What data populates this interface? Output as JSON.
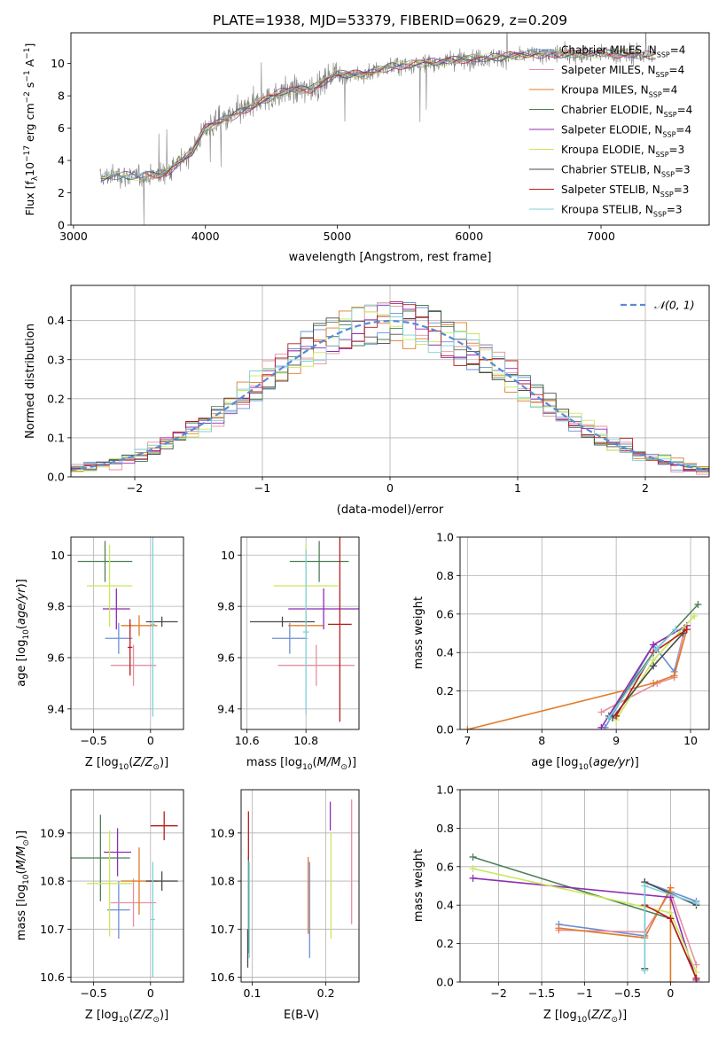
{
  "figure": {
    "title": "PLATE=1938, MJD=53379, FIBERID=0629, z=0.209"
  },
  "models": [
    {
      "name": "Chabrier MILES, N$_{SSP}$=4",
      "label_main": "Chabrier MILES, N",
      "label_sub": "SSP",
      "label_tail": "=4",
      "color": "#6b8fd6"
    },
    {
      "name": "Salpeter MILES, N$_{SSP}$=4",
      "label_main": "Salpeter MILES, N",
      "label_sub": "SSP",
      "label_tail": "=4",
      "color": "#e88f9e"
    },
    {
      "name": "Kroupa MILES, N$_{SSP}$=4",
      "label_main": "Kroupa MILES, N",
      "label_sub": "SSP",
      "label_tail": "=4",
      "color": "#e07b28"
    },
    {
      "name": "Chabrier ELODIE, N$_{SSP}$=4",
      "label_main": "Chabrier ELODIE, N",
      "label_sub": "SSP",
      "label_tail": "=4",
      "color": "#4e7f56"
    },
    {
      "name": "Salpeter ELODIE, N$_{SSP}$=4",
      "label_main": "Salpeter ELODIE, N",
      "label_sub": "SSP",
      "label_tail": "=4",
      "color": "#8e2db0"
    },
    {
      "name": "Kroupa ELODIE, N$_{SSP}$=3",
      "label_main": "Kroupa ELODIE, N",
      "label_sub": "SSP",
      "label_tail": "=3",
      "color": "#c9e85a"
    },
    {
      "name": "Chabrier STELIB, N$_{SSP}$=3",
      "label_main": "Chabrier STELIB, N",
      "label_sub": "SSP",
      "label_tail": "=3",
      "color": "#4a4a4a"
    },
    {
      "name": "Salpeter STELIB, N$_{SSP}$=3",
      "label_main": "Salpeter STELIB, N",
      "label_sub": "SSP",
      "label_tail": "=3",
      "color": "#b81c1c"
    },
    {
      "name": "Kroupa STELIB, N$_{SSP}$=3",
      "label_main": "Kroupa STELIB, N",
      "label_sub": "SSP",
      "label_tail": "=3",
      "color": "#7fd0d8"
    }
  ],
  "chart_data": [
    {
      "id": "spectrum",
      "type": "line",
      "xlabel": "wavelength [Angstrom, rest frame]",
      "ylabel": "Flux [f$_\\lambda$10$^{-17}$ erg cm$^{-2}$ s$^{-1}$ A$^{-1}$]",
      "xlim": [
        2980,
        7820
      ],
      "ylim": [
        0,
        11.9
      ],
      "xticks": [
        3000,
        4000,
        5000,
        6000,
        7000
      ],
      "yticks": [
        0,
        2,
        4,
        6,
        8,
        10
      ],
      "grid": false,
      "legend": "top-right",
      "data_color": "#7f7f7f",
      "continuum_x": [
        3200,
        3300,
        3500,
        3700,
        3900,
        4000,
        4200,
        4400,
        4600,
        4800,
        5000,
        5200,
        5400,
        5600,
        5800,
        6000,
        6200,
        6400,
        6600,
        6800,
        7000,
        7200,
        7400
      ],
      "continuum_y": [
        2.9,
        3.1,
        3.0,
        3.2,
        4.6,
        6.0,
        6.7,
        7.6,
        8.3,
        8.4,
        9.4,
        9.3,
        9.8,
        10.0,
        10.1,
        10.3,
        10.4,
        10.5,
        10.6,
        10.6,
        10.6,
        10.6,
        10.5
      ]
    },
    {
      "id": "residuals",
      "type": "histogram",
      "xlabel": "(data-model)/error",
      "ylabel": "Normed distribution",
      "xlim": [
        -2.5,
        2.5
      ],
      "ylim": [
        0,
        0.49
      ],
      "xticks": [
        -2,
        -1,
        0,
        1,
        2
      ],
      "yticks": [
        0.0,
        0.1,
        0.2,
        0.3,
        0.4
      ],
      "grid": true,
      "legend": "top-right",
      "reference": {
        "label": "$\\mathcal{N}(0,1)$",
        "label_text": "𝒩(0, 1)",
        "color": "#5a8ad6",
        "style": "dashed"
      },
      "bin_width": 0.1
    },
    {
      "id": "age-vs-Z",
      "type": "scatter",
      "xlabel": "Z [log$_{10}$(Z/Z$_\\odot$)]",
      "ylabel": "age  [log$_{10}$(age/yr)]",
      "xlim": [
        -0.7,
        0.29
      ],
      "ylim": [
        9.32,
        10.07
      ],
      "xticks": [
        -0.5,
        0.0
      ],
      "yticks": [
        9.4,
        9.6,
        9.8,
        10.0
      ],
      "grid": true,
      "points": [
        {
          "x": -0.28,
          "y": 9.675,
          "xerr": 0.12,
          "yerr": 0.06
        },
        {
          "x": -0.15,
          "y": 9.57,
          "xerr": 0.2,
          "yerr": 0.08
        },
        {
          "x": -0.1,
          "y": 9.725,
          "xerr": 0.16,
          "yerr": 0.04
        },
        {
          "x": -0.4,
          "y": 9.975,
          "xerr": 0.24,
          "yerr": 0.08
        },
        {
          "x": -0.3,
          "y": 9.79,
          "xerr": 0.12,
          "yerr": 0.08
        },
        {
          "x": -0.36,
          "y": 9.88,
          "xerr": 0.2,
          "yerr": 0.16
        },
        {
          "x": 0.1,
          "y": 9.74,
          "xerr": 0.14,
          "yerr": 0.02
        },
        {
          "x": -0.18,
          "y": 9.64,
          "xerr": 0.02,
          "yerr": 0.11
        },
        {
          "x": 0.02,
          "y": 9.73,
          "xerr": 0.02,
          "yerr": 0.36
        }
      ]
    },
    {
      "id": "age-vs-mass",
      "type": "scatter",
      "xlabel": "mass [log$_{10}$(M/M$_\\odot$)]",
      "ylabel": "",
      "xlim": [
        10.58,
        10.98
      ],
      "ylim": [
        9.32,
        10.07
      ],
      "xticks": [
        10.6,
        10.8
      ],
      "yticks": [
        9.4,
        9.6,
        9.8,
        10.0
      ],
      "grid": true,
      "points": [
        {
          "x": 10.745,
          "y": 9.675,
          "xerr": 0.06,
          "yerr": 0.06
        },
        {
          "x": 10.835,
          "y": 9.57,
          "xerr": 0.13,
          "yerr": 0.08
        },
        {
          "x": 10.8,
          "y": 9.725,
          "xerr": 0.06,
          "yerr": 0.04
        },
        {
          "x": 10.845,
          "y": 9.975,
          "xerr": 0.1,
          "yerr": 0.08
        },
        {
          "x": 10.86,
          "y": 9.79,
          "xerr": 0.12,
          "yerr": 0.08
        },
        {
          "x": 10.8,
          "y": 9.88,
          "xerr": 0.11,
          "yerr": 0.16
        },
        {
          "x": 10.72,
          "y": 9.74,
          "xerr": 0.11,
          "yerr": 0.02
        },
        {
          "x": 10.915,
          "y": 9.73,
          "xerr": 0.04,
          "yerr": 0.38
        },
        {
          "x": 10.8,
          "y": 9.7,
          "xerr": 0.01,
          "yerr": 0.32
        }
      ]
    },
    {
      "id": "mass-weight-vs-age",
      "type": "line",
      "xlabel": "age  [log$_{10}$(age/yr)]",
      "ylabel": "mass weight",
      "xlim": [
        6.9,
        10.25
      ],
      "ylim": [
        0,
        1
      ],
      "xticks": [
        7,
        8,
        9,
        10
      ],
      "yticks": [
        0.0,
        0.2,
        0.4,
        0.6,
        0.8,
        1.0
      ],
      "grid": true,
      "series": [
        {
          "x": [
            8.85,
            9.5,
            9.78,
            9.92
          ],
          "y": [
            0.01,
            0.44,
            0.3,
            0.52
          ]
        },
        {
          "x": [
            8.8,
            9.55,
            9.78,
            9.92
          ],
          "y": [
            0.09,
            0.24,
            0.27,
            0.53
          ]
        },
        {
          "x": [
            7.0,
            9.5,
            9.78,
            9.95
          ],
          "y": [
            0.0,
            0.24,
            0.28,
            0.52
          ]
        },
        {
          "x": [
            8.9,
            9.5,
            10.1
          ],
          "y": [
            0.07,
            0.4,
            0.65
          ]
        },
        {
          "x": [
            8.8,
            9.5,
            9.95
          ],
          "y": [
            0.01,
            0.44,
            0.54
          ]
        },
        {
          "x": [
            9.0,
            9.5,
            10.05
          ],
          "y": [
            0.05,
            0.36,
            0.59
          ]
        },
        {
          "x": [
            8.95,
            9.5,
            9.9
          ],
          "y": [
            0.06,
            0.33,
            0.5
          ]
        },
        {
          "x": [
            9.0,
            9.5,
            9.95
          ],
          "y": [
            0.07,
            0.4,
            0.52
          ]
        },
        {
          "x": [
            8.9,
            9.55,
            9.8
          ],
          "y": [
            0.06,
            0.42,
            0.52
          ]
        }
      ]
    },
    {
      "id": "mass-vs-Z",
      "type": "scatter",
      "xlabel": "Z [log$_{10}$(Z/Z$_\\odot$)]",
      "ylabel": "mass [log$_{10}$(M/M$_\\odot$)]",
      "xlim": [
        -0.7,
        0.29
      ],
      "ylim": [
        10.59,
        10.99
      ],
      "xticks": [
        -0.5,
        0.0
      ],
      "yticks": [
        10.6,
        10.7,
        10.8,
        10.9
      ],
      "grid": true,
      "points": [
        {
          "x": -0.28,
          "y": 10.74,
          "xerr": 0.1,
          "yerr": 0.06
        },
        {
          "x": -0.15,
          "y": 10.755,
          "xerr": 0.2,
          "yerr": 0.05
        },
        {
          "x": -0.1,
          "y": 10.8,
          "xerr": 0.16,
          "yerr": 0.07
        },
        {
          "x": -0.44,
          "y": 10.848,
          "xerr": 0.26,
          "yerr": 0.09
        },
        {
          "x": -0.29,
          "y": 10.86,
          "xerr": 0.12,
          "yerr": 0.05
        },
        {
          "x": -0.36,
          "y": 10.795,
          "xerr": 0.2,
          "yerr": 0.11
        },
        {
          "x": 0.1,
          "y": 10.8,
          "xerr": 0.14,
          "yerr": 0.02
        },
        {
          "x": 0.12,
          "y": 10.915,
          "xerr": 0.12,
          "yerr": 0.03
        },
        {
          "x": 0.02,
          "y": 10.72,
          "xerr": 0.02,
          "yerr": 0.12
        }
      ]
    },
    {
      "id": "mass-vs-EBV",
      "type": "scatter",
      "xlabel": "E(B-V)",
      "ylabel": "",
      "xlim": [
        0.085,
        0.245
      ],
      "ylim": [
        10.59,
        10.99
      ],
      "xticks": [
        0.1,
        0.2
      ],
      "yticks": [
        10.6,
        10.7,
        10.8,
        10.9
      ],
      "grid": true,
      "points": [
        {
          "x": 0.178,
          "y": 10.74,
          "xerr": 0,
          "yerr": 0.1
        },
        {
          "x": 0.235,
          "y": 10.84,
          "xerr": 0,
          "yerr": 0.13
        },
        {
          "x": 0.176,
          "y": 10.77,
          "xerr": 0,
          "yerr": 0.08
        },
        {
          "x": 0.095,
          "y": 10.75,
          "xerr": 0,
          "yerr": 0.1
        },
        {
          "x": 0.206,
          "y": 10.935,
          "xerr": 0,
          "yerr": 0.03
        },
        {
          "x": 0.207,
          "y": 10.79,
          "xerr": 0,
          "yerr": 0.11
        },
        {
          "x": 0.094,
          "y": 10.66,
          "xerr": 0,
          "yerr": 0.04
        },
        {
          "x": 0.095,
          "y": 10.895,
          "xerr": 0,
          "yerr": 0.05
        },
        {
          "x": 0.096,
          "y": 10.74,
          "xerr": 0,
          "yerr": 0.1
        }
      ]
    },
    {
      "id": "mass-weight-vs-Z",
      "type": "line",
      "xlabel": "Z [log$_{10}$(Z/Z$_\\odot$)]",
      "ylabel": "mass weight",
      "xlim": [
        -2.45,
        0.45
      ],
      "ylim": [
        0,
        1
      ],
      "xticks": [
        -2.0,
        -1.5,
        -1.0,
        -0.5,
        0.0
      ],
      "yticks": [
        0.0,
        0.2,
        0.4,
        0.6,
        0.8,
        1.0
      ],
      "grid": true,
      "series": [
        {
          "x": [
            -1.3,
            -0.3,
            -0.3,
            0.3
          ],
          "y": [
            0.3,
            0.24,
            0.52,
            0.42
          ]
        },
        {
          "x": [
            -1.3,
            -0.3,
            0.0,
            0.3
          ],
          "y": [
            0.27,
            0.26,
            0.47,
            0.09
          ]
        },
        {
          "x": [
            -1.3,
            -0.3,
            0.0,
            0.0
          ],
          "y": [
            0.28,
            0.23,
            0.49,
            0.0
          ]
        },
        {
          "x": [
            -2.3,
            0.0,
            0.3
          ],
          "y": [
            0.65,
            0.33,
            0.02
          ]
        },
        {
          "x": [
            -2.3,
            0.0,
            0.3
          ],
          "y": [
            0.54,
            0.44,
            0.01
          ]
        },
        {
          "x": [
            -2.3,
            0.0,
            0.3
          ],
          "y": [
            0.59,
            0.36,
            0.05
          ]
        },
        {
          "x": [
            -0.3,
            -0.3,
            0.3
          ],
          "y": [
            0.07,
            0.52,
            0.4
          ]
        },
        {
          "x": [
            -0.3,
            0.0,
            0.3
          ],
          "y": [
            0.4,
            0.33,
            0.02
          ]
        },
        {
          "x": [
            -0.3,
            -0.3,
            0.3
          ],
          "y": [
            0.06,
            0.5,
            0.41
          ]
        }
      ]
    }
  ]
}
